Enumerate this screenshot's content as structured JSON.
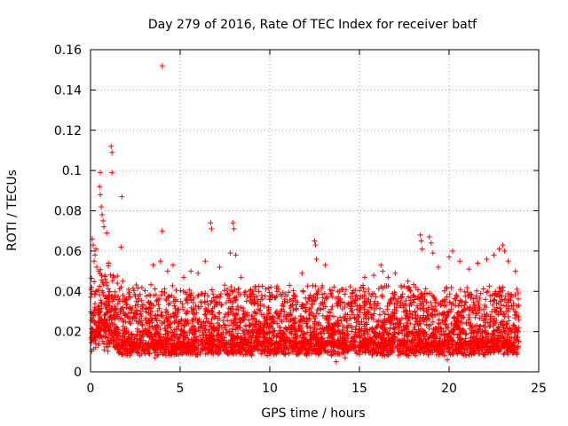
{
  "chart_data": {
    "type": "scatter",
    "title": "Day 279 of 2016, Rate Of TEC Index for receiver batf",
    "xlabel": "GPS time / hours",
    "ylabel": "ROTI / TECUs",
    "xlim": [
      0,
      25
    ],
    "ylim": [
      0,
      0.16
    ],
    "x_ticks": [
      "0",
      "5",
      "10",
      "15",
      "20",
      "25"
    ],
    "y_ticks": [
      "0",
      "0.02",
      "0.04",
      "0.06",
      "0.08",
      "0.1",
      "0.12",
      "0.14",
      "0.16"
    ],
    "grid": true,
    "marker": "+",
    "color": "#ff0000",
    "series": [
      {
        "name": "ROTI",
        "points": [
          [
            4.0,
            0.152
          ],
          [
            1.15,
            0.112
          ],
          [
            1.2,
            0.109
          ],
          [
            1.2,
            0.099
          ],
          [
            0.55,
            0.099
          ],
          [
            1.75,
            0.087
          ],
          [
            0.5,
            0.092
          ],
          [
            0.55,
            0.088
          ],
          [
            0.6,
            0.082
          ],
          [
            0.65,
            0.078
          ],
          [
            0.7,
            0.075
          ],
          [
            0.75,
            0.072
          ],
          [
            0.1,
            0.066
          ],
          [
            0.15,
            0.063
          ],
          [
            0.3,
            0.061
          ],
          [
            0.25,
            0.058
          ],
          [
            0.9,
            0.069
          ],
          [
            0.2,
            0.055
          ],
          [
            0.35,
            0.052
          ],
          [
            0.45,
            0.05
          ],
          [
            0.8,
            0.048
          ],
          [
            1.0,
            0.054
          ],
          [
            1.3,
            0.047
          ],
          [
            1.5,
            0.044
          ],
          [
            1.7,
            0.062
          ],
          [
            1.8,
            0.045
          ],
          [
            4.0,
            0.07
          ],
          [
            3.5,
            0.053
          ],
          [
            3.9,
            0.055
          ],
          [
            4.3,
            0.05
          ],
          [
            4.6,
            0.053
          ],
          [
            5.2,
            0.047
          ],
          [
            5.6,
            0.05
          ],
          [
            6.0,
            0.049
          ],
          [
            6.4,
            0.055
          ],
          [
            6.7,
            0.074
          ],
          [
            6.75,
            0.071
          ],
          [
            7.2,
            0.052
          ],
          [
            7.8,
            0.059
          ],
          [
            7.95,
            0.074
          ],
          [
            8.0,
            0.071
          ],
          [
            8.1,
            0.058
          ],
          [
            8.4,
            0.047
          ],
          [
            9.2,
            0.041
          ],
          [
            10.4,
            0.04
          ],
          [
            11.1,
            0.043
          ],
          [
            11.8,
            0.049
          ],
          [
            12.5,
            0.065
          ],
          [
            12.55,
            0.063
          ],
          [
            12.6,
            0.056
          ],
          [
            13.1,
            0.053
          ],
          [
            13.8,
            0.04
          ],
          [
            14.6,
            0.039
          ],
          [
            15.3,
            0.047
          ],
          [
            15.2,
            0.043
          ],
          [
            15.5,
            0.041
          ],
          [
            15.8,
            0.048
          ],
          [
            16.2,
            0.053
          ],
          [
            16.3,
            0.05
          ],
          [
            16.6,
            0.047
          ],
          [
            17.0,
            0.049
          ],
          [
            17.7,
            0.045
          ],
          [
            18.4,
            0.068
          ],
          [
            18.45,
            0.065
          ],
          [
            18.5,
            0.061
          ],
          [
            18.9,
            0.067
          ],
          [
            19.0,
            0.064
          ],
          [
            19.1,
            0.059
          ],
          [
            19.4,
            0.052
          ],
          [
            20.0,
            0.057
          ],
          [
            20.2,
            0.06
          ],
          [
            20.6,
            0.055
          ],
          [
            21.1,
            0.051
          ],
          [
            21.6,
            0.054
          ],
          [
            22.1,
            0.056
          ],
          [
            22.5,
            0.058
          ],
          [
            22.8,
            0.061
          ],
          [
            23.0,
            0.063
          ],
          [
            23.1,
            0.06
          ],
          [
            23.3,
            0.055
          ],
          [
            23.7,
            0.05
          ],
          [
            13.7,
            0.005
          ],
          [
            14.2,
            0.007
          ],
          [
            3.6,
            0.007
          ],
          [
            16.4,
            0.008
          ],
          [
            19.9,
            0.006
          ]
        ]
      }
    ]
  }
}
